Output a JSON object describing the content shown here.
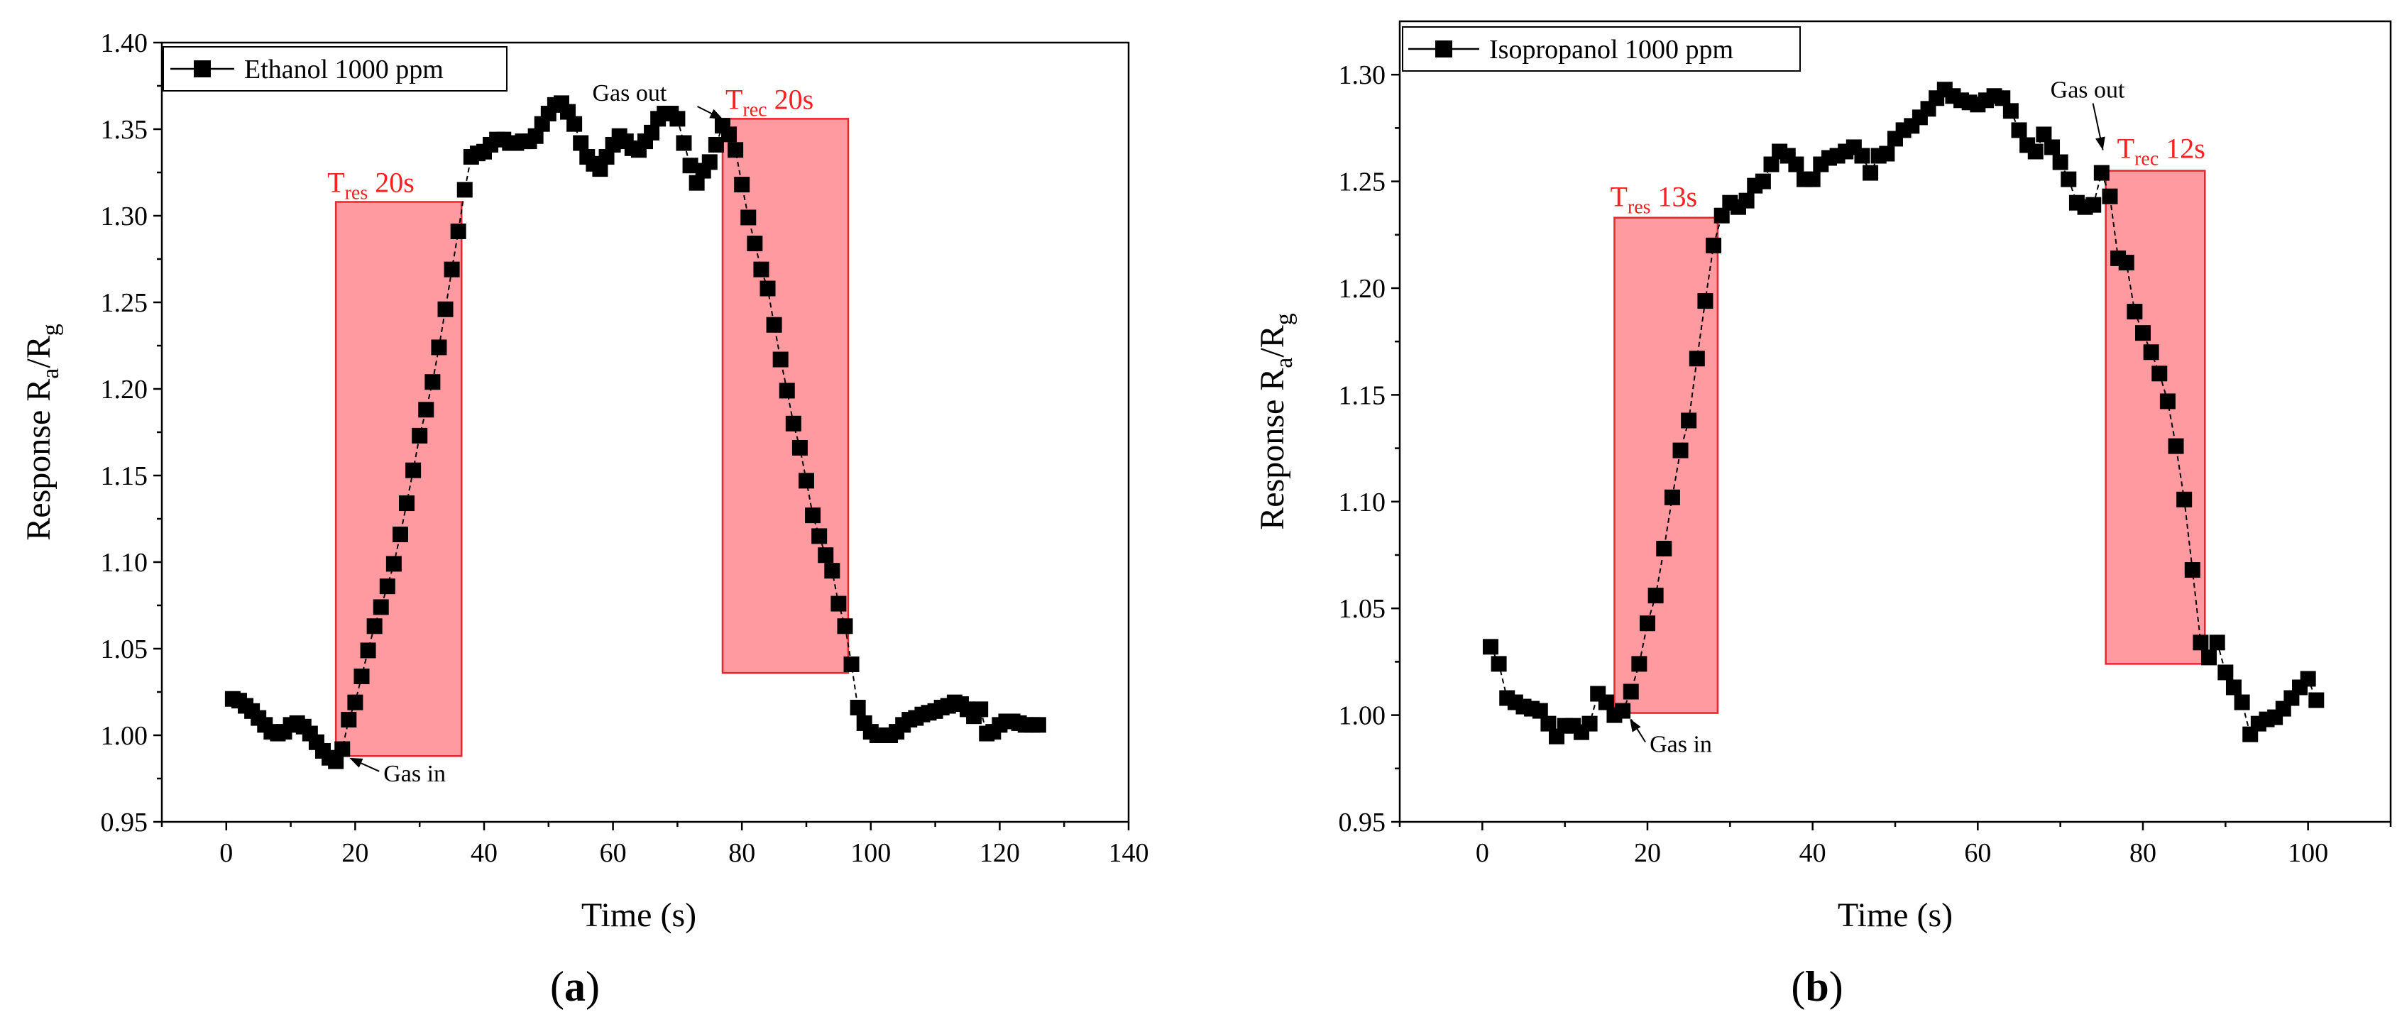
{
  "chart_data": [
    {
      "type": "scatter",
      "panel_label": "(a)",
      "xlabel": "Time (s)",
      "ylabel_main": "Response R",
      "ylabel_sub1": "a",
      "ylabel_sep": "/R",
      "ylabel_sub2": "g",
      "xlim": [
        -10,
        140
      ],
      "ylim": [
        0.95,
        1.4
      ],
      "xticks": [
        0,
        20,
        40,
        60,
        80,
        100,
        120,
        140
      ],
      "yticks": [
        "0.95",
        "1.00",
        "1.05",
        "1.10",
        "1.15",
        "1.20",
        "1.25",
        "1.30",
        "1.35",
        "1.40"
      ],
      "legend": "Ethanol 1000 ppm",
      "series": [
        {
          "name": "Ethanol 1000 ppm",
          "x": [
            1,
            2,
            3,
            4,
            5,
            6,
            7,
            8,
            9,
            10,
            11,
            12,
            13,
            14,
            15,
            16,
            17,
            18,
            19,
            20,
            21,
            22,
            23,
            24,
            25,
            26,
            27,
            28,
            29,
            30,
            31,
            32,
            33,
            34,
            35,
            36,
            37,
            38,
            39,
            40,
            41,
            42,
            43,
            44,
            45,
            46,
            47,
            48,
            49,
            50,
            51,
            52,
            53,
            54,
            55,
            56,
            57,
            58,
            59,
            60,
            61,
            62,
            63,
            64,
            65,
            66,
            67,
            68,
            69,
            70,
            71,
            72,
            73,
            74,
            75,
            76,
            77,
            78,
            79,
            80,
            81,
            82,
            83,
            84,
            85,
            86,
            87,
            88,
            89,
            90,
            91,
            92,
            93,
            94,
            95,
            96,
            97,
            98,
            99,
            100,
            101,
            102,
            103,
            104,
            105,
            106,
            107,
            108,
            109,
            110,
            111,
            112,
            113,
            114,
            115,
            116,
            117,
            118,
            119,
            120,
            121,
            122,
            123,
            124,
            125,
            126
          ],
          "y": [
            1.021,
            1.02,
            1.017,
            1.014,
            1.01,
            1.006,
            1.002,
            1.001,
            1.002,
            1.006,
            1.007,
            1.005,
            1.001,
            0.996,
            0.991,
            0.987,
            0.985,
            0.992,
            1.009,
            1.019,
            1.034,
            1.049,
            1.063,
            1.074,
            1.086,
            1.099,
            1.116,
            1.134,
            1.153,
            1.173,
            1.188,
            1.204,
            1.224,
            1.246,
            1.269,
            1.291,
            1.315,
            1.334,
            1.336,
            1.337,
            1.341,
            1.344,
            1.344,
            1.342,
            1.342,
            1.343,
            1.343,
            1.346,
            1.353,
            1.359,
            1.364,
            1.365,
            1.36,
            1.353,
            1.342,
            1.334,
            1.33,
            1.327,
            1.334,
            1.341,
            1.346,
            1.343,
            1.339,
            1.338,
            1.343,
            1.348,
            1.356,
            1.359,
            1.359,
            1.356,
            1.342,
            1.329,
            1.319,
            1.326,
            1.331,
            1.341,
            1.352,
            1.347,
            1.338,
            1.318,
            1.299,
            1.284,
            1.269,
            1.258,
            1.237,
            1.217,
            1.199,
            1.18,
            1.166,
            1.147,
            1.127,
            1.115,
            1.104,
            1.095,
            1.076,
            1.063,
            1.041,
            1.016,
            1.007,
            1.002,
            1.0,
            1.0,
            1.0,
            1.002,
            1.006,
            1.009,
            1.01,
            1.012,
            1.013,
            1.014,
            1.016,
            1.017,
            1.019,
            1.018,
            1.015,
            1.011,
            1.015,
            1.001,
            1.002,
            1.006,
            1.008,
            1.008,
            1.007,
            1.006,
            1.006,
            1.006
          ]
        }
      ],
      "annotations": {
        "res_label": "T",
        "res_sub": "res",
        "res_value": " 20s",
        "rec_label": "T",
        "rec_sub": "rec",
        "rec_value": " 20s",
        "gas_in": "Gas in",
        "gas_out": "Gas out",
        "res_region": {
          "x": [
            17,
            36.5
          ],
          "y": [
            0.988,
            1.308
          ]
        },
        "rec_region": {
          "x": [
            77,
            96.5
          ],
          "y": [
            1.036,
            1.356
          ]
        },
        "gas_in_point": [
          18,
          0.989
        ],
        "gas_out_point": [
          77.5,
          1.35
        ]
      }
    },
    {
      "type": "scatter",
      "panel_label": "(b)",
      "xlabel": "Time (s)",
      "ylabel_main": "Response R",
      "ylabel_sub1": "a",
      "ylabel_sep": "/R",
      "ylabel_sub2": "g",
      "xlim": [
        -10,
        110
      ],
      "ylim": [
        0.95,
        1.325
      ],
      "xticks": [
        0,
        20,
        40,
        60,
        80,
        100
      ],
      "yticks": [
        "0.95",
        "1.00",
        "1.05",
        "1.10",
        "1.15",
        "1.20",
        "1.25",
        "1.30"
      ],
      "legend": "Isopropanol 1000 ppm",
      "series": [
        {
          "name": "Isopropanol 1000 ppm",
          "x": [
            1,
            2,
            3,
            4,
            5,
            6,
            7,
            8,
            9,
            10,
            11,
            12,
            13,
            14,
            15,
            16,
            17,
            18,
            19,
            20,
            21,
            22,
            23,
            24,
            25,
            26,
            27,
            28,
            29,
            30,
            31,
            32,
            33,
            34,
            35,
            36,
            37,
            38,
            39,
            40,
            41,
            42,
            43,
            44,
            45,
            46,
            47,
            48,
            49,
            50,
            51,
            52,
            53,
            54,
            55,
            56,
            57,
            58,
            59,
            60,
            61,
            62,
            63,
            64,
            65,
            66,
            67,
            68,
            69,
            70,
            71,
            72,
            73,
            74,
            75,
            76,
            77,
            78,
            79,
            80,
            81,
            82,
            83,
            84,
            85,
            86,
            87,
            88,
            89,
            90,
            91,
            92,
            93,
            94,
            95,
            96,
            97,
            98,
            99,
            100,
            101
          ],
          "y": [
            1.032,
            1.024,
            1.008,
            1.006,
            1.004,
            1.003,
            1.002,
            0.996,
            0.99,
            0.995,
            0.995,
            0.992,
            0.996,
            1.01,
            1.006,
            1.0,
            1.002,
            1.011,
            1.024,
            1.043,
            1.056,
            1.078,
            1.102,
            1.124,
            1.138,
            1.167,
            1.194,
            1.22,
            1.234,
            1.24,
            1.238,
            1.241,
            1.248,
            1.25,
            1.258,
            1.264,
            1.262,
            1.258,
            1.251,
            1.251,
            1.258,
            1.261,
            1.262,
            1.264,
            1.266,
            1.262,
            1.254,
            1.262,
            1.263,
            1.27,
            1.274,
            1.276,
            1.28,
            1.284,
            1.289,
            1.293,
            1.29,
            1.288,
            1.287,
            1.286,
            1.288,
            1.29,
            1.289,
            1.283,
            1.274,
            1.267,
            1.264,
            1.272,
            1.266,
            1.259,
            1.251,
            1.24,
            1.238,
            1.239,
            1.254,
            1.243,
            1.214,
            1.212,
            1.189,
            1.179,
            1.17,
            1.16,
            1.147,
            1.126,
            1.101,
            1.068,
            1.034,
            1.027,
            1.034,
            1.02,
            1.013,
            1.006,
            0.991,
            0.996,
            0.998,
            0.999,
            1.003,
            1.008,
            1.013,
            1.017,
            1.007
          ]
        }
      ],
      "annotations": {
        "res_label": "T",
        "res_sub": "res",
        "res_value": " 13s",
        "rec_label": "T",
        "rec_sub": "rec",
        "rec_value": " 12s",
        "gas_in": "Gas in",
        "gas_out": "Gas out",
        "res_region": {
          "x": [
            16,
            28.5
          ],
          "y": [
            1.001,
            1.233
          ]
        },
        "rec_region": {
          "x": [
            75.5,
            87.5
          ],
          "y": [
            1.024,
            1.255
          ]
        },
        "gas_in_point": [
          17,
          1.0
        ],
        "gas_out_point": [
          75.5,
          1.26
        ]
      }
    }
  ]
}
